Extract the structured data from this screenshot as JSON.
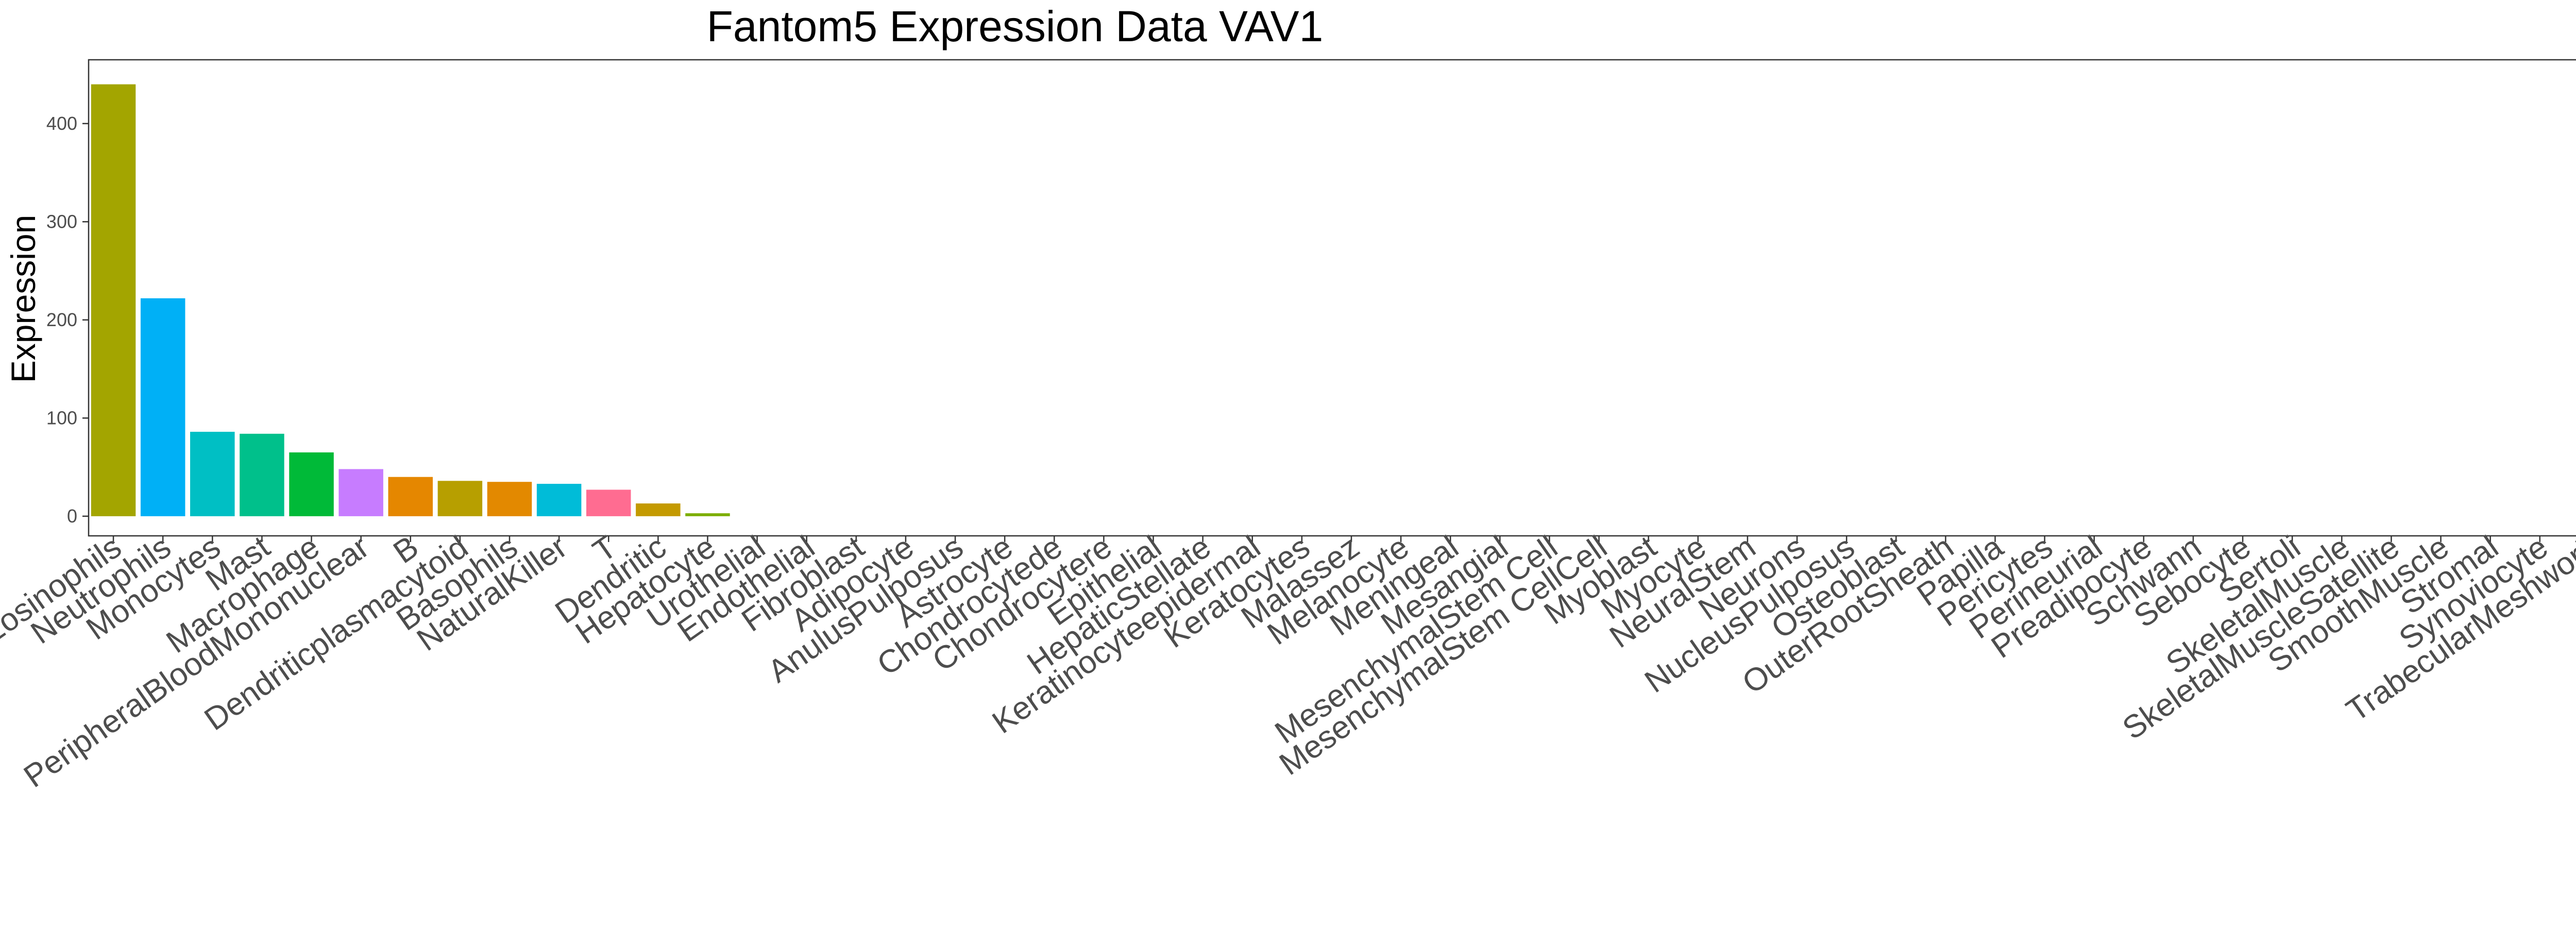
{
  "chart_data": {
    "type": "bar",
    "title": "Fantom5 Expression Data VAV1",
    "xlabel": "",
    "ylabel": "Expression",
    "ylim": [
      -20,
      465
    ],
    "yticks": [
      0,
      100,
      200,
      300,
      400
    ],
    "grid": false,
    "legend": "none",
    "categories": [
      "Eosinophils",
      "Neutrophils",
      "Monocytes",
      "Mast",
      "Macrophage",
      "PeripheralBloodMononuclear",
      "B",
      "Dendriticplasmacytoid",
      "Basophils",
      "NaturalKiller",
      "T",
      "Dendritic",
      "Hepatocyte",
      "Urothelial",
      "Endothelial",
      "Fibroblast",
      "Adipocyte",
      "AnulusPulposus",
      "Astrocyte",
      "Chondrocytede",
      "Chondrocytere",
      "Epithelial",
      "HepaticStellate",
      "Keratinocyteepidermal",
      "Keratocytes",
      "Malassez",
      "Melanocyte",
      "Meningeal",
      "Mesangial",
      "MesenchymalStem Cell",
      "MesenchymalStem CellCell",
      "Myoblast",
      "Myocyte",
      "NeuralStem",
      "Neurons",
      "NucleusPulposus",
      "Osteoblast",
      "OuterRootSheath",
      "Papilla",
      "Pericytes",
      "Perineurial",
      "Preadipocyte",
      "Schwann",
      "Sebocyte",
      "Sertoli",
      "SkeletalMuscle",
      "SkeletalMuscleSatellite",
      "SmoothMuscle",
      "Stromal",
      "Synoviocyte",
      "TrabecularMeshwork"
    ],
    "values": [
      440,
      222,
      86,
      84,
      65,
      48,
      40,
      36,
      35,
      33,
      27,
      13,
      3,
      0,
      0,
      0,
      0,
      0,
      0,
      0,
      0,
      0,
      0,
      0,
      0,
      0,
      0,
      0,
      0,
      0,
      0,
      0,
      0,
      0,
      0,
      0,
      0,
      0,
      0,
      0,
      0,
      0,
      0,
      0,
      0,
      0,
      0,
      0,
      0,
      0,
      0
    ],
    "colors": [
      "#A3A500",
      "#00B0F6",
      "#00BFC4",
      "#00C08B",
      "#00BA38",
      "#C77CFF",
      "#E58700",
      "#B79F00",
      "#E38900",
      "#00BCD8",
      "#FF6C91",
      "#C49A00",
      "#7CAE00",
      "#F8766D",
      "#F8766D",
      "#F8766D",
      "#F8766D",
      "#F8766D",
      "#F8766D",
      "#F8766D",
      "#F8766D",
      "#F8766D",
      "#F8766D",
      "#F8766D",
      "#F8766D",
      "#F8766D",
      "#F8766D",
      "#F8766D",
      "#F8766D",
      "#F8766D",
      "#F8766D",
      "#F8766D",
      "#F8766D",
      "#F8766D",
      "#F8766D",
      "#F8766D",
      "#F8766D",
      "#F8766D",
      "#F8766D",
      "#F8766D",
      "#F8766D",
      "#F8766D",
      "#F8766D",
      "#F8766D",
      "#F8766D",
      "#F8766D",
      "#F8766D",
      "#F8766D",
      "#F8766D",
      "#F8766D",
      "#F8766D"
    ],
    "panel_border_color": "#333333",
    "tick_text_color": "#4d4d4d"
  }
}
